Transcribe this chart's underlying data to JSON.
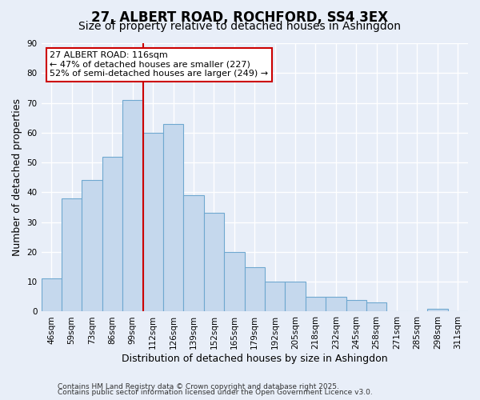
{
  "title": "27, ALBERT ROAD, ROCHFORD, SS4 3EX",
  "subtitle": "Size of property relative to detached houses in Ashingdon",
  "xlabel": "Distribution of detached houses by size in Ashingdon",
  "ylabel": "Number of detached properties",
  "categories": [
    "46sqm",
    "59sqm",
    "73sqm",
    "86sqm",
    "99sqm",
    "112sqm",
    "126sqm",
    "139sqm",
    "152sqm",
    "165sqm",
    "179sqm",
    "192sqm",
    "205sqm",
    "218sqm",
    "232sqm",
    "245sqm",
    "258sqm",
    "271sqm",
    "285sqm",
    "298sqm",
    "311sqm"
  ],
  "values": [
    11,
    38,
    44,
    52,
    71,
    60,
    63,
    39,
    33,
    20,
    15,
    10,
    10,
    5,
    5,
    4,
    3,
    0,
    0,
    1,
    0
  ],
  "bar_color": "#c5d8ed",
  "bar_edge_color": "#6fa8d0",
  "background_color": "#e8eef8",
  "grid_color": "#ffffff",
  "vline_index": 4.5,
  "vline_color": "#cc0000",
  "annotation_text_line1": "27 ALBERT ROAD: 116sqm",
  "annotation_text_line2": "← 47% of detached houses are smaller (227)",
  "annotation_text_line3": "52% of semi-detached houses are larger (249) →",
  "annotation_box_color": "#ffffff",
  "annotation_box_edge": "#cc0000",
  "ylim": [
    0,
    90
  ],
  "yticks": [
    0,
    10,
    20,
    30,
    40,
    50,
    60,
    70,
    80,
    90
  ],
  "footer1": "Contains HM Land Registry data © Crown copyright and database right 2025.",
  "footer2": "Contains public sector information licensed under the Open Government Licence v3.0.",
  "title_fontsize": 12,
  "subtitle_fontsize": 10,
  "axis_label_fontsize": 9,
  "tick_fontsize": 7.5,
  "annotation_fontsize": 8,
  "footer_fontsize": 6.5
}
